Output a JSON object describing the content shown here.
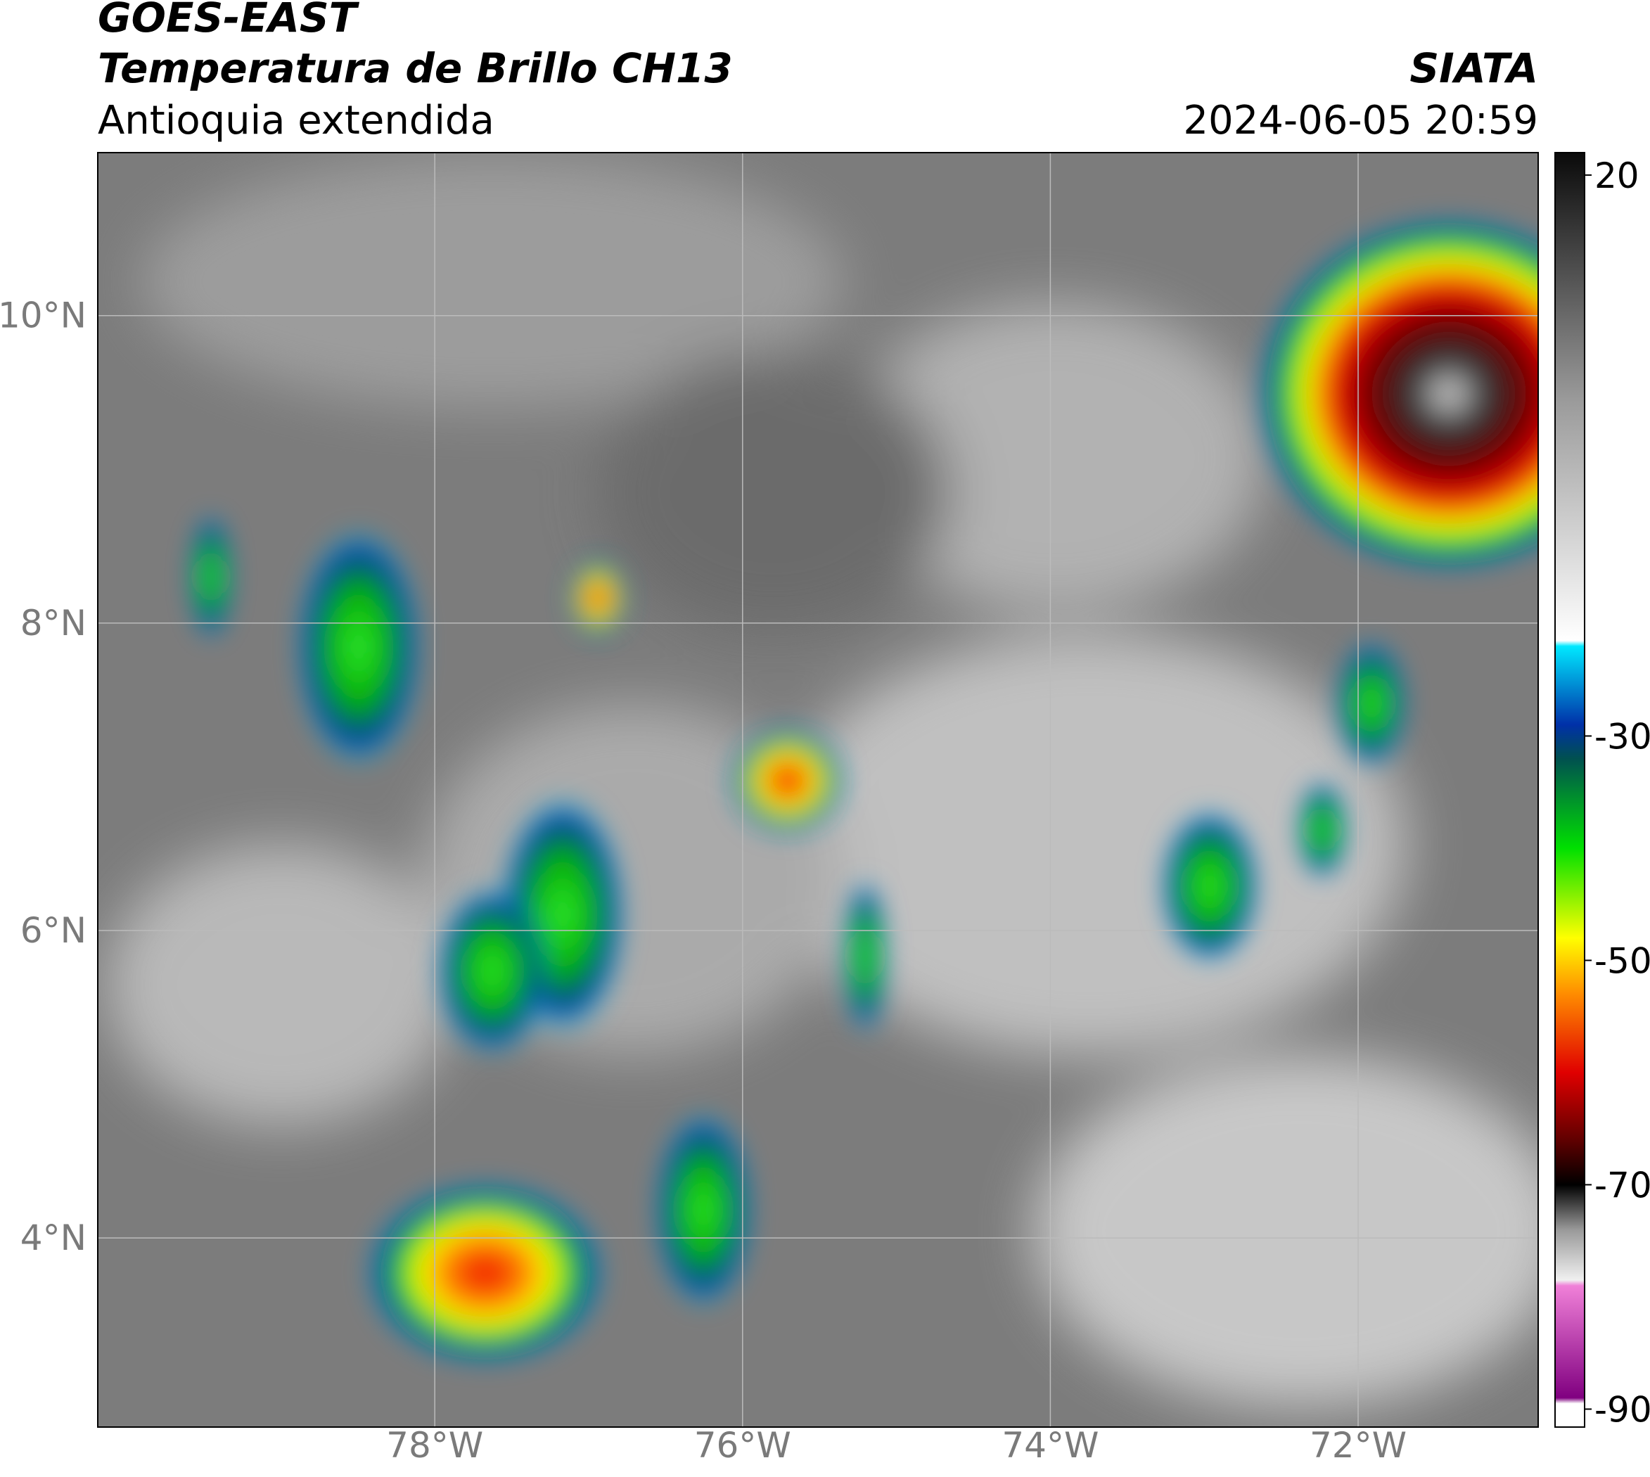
{
  "header": {
    "line1": "GOES-EAST",
    "line2": "Temperatura de Brillo CH13",
    "subtitle": "Antioquia extendida",
    "source": "SIATA",
    "datetime": "2024-06-05 20:59"
  },
  "map": {
    "lon_range": [
      -80.19,
      -70.83
    ],
    "lat_range": [
      2.77,
      11.06
    ],
    "lon_ticks": [
      {
        "value": -78,
        "label": "78°W"
      },
      {
        "value": -76,
        "label": "76°W"
      },
      {
        "value": -74,
        "label": "74°W"
      },
      {
        "value": -72,
        "label": "72°W"
      }
    ],
    "lat_ticks": [
      {
        "value": 10,
        "label": "10°N"
      },
      {
        "value": 8,
        "label": "8°N"
      },
      {
        "value": 6,
        "label": "6°N"
      },
      {
        "value": 4,
        "label": "4°N"
      }
    ],
    "grid": true,
    "grid_color": "#bbbbbb"
  },
  "colorbar": {
    "range": [
      -91.6,
      22
    ],
    "ticks": [
      20,
      -30,
      -50,
      -70,
      -90
    ],
    "colormap": [
      {
        "value": 22,
        "color": "#0a0a0a"
      },
      {
        "value": 0,
        "color": "#9a9a9a"
      },
      {
        "value": -21.5,
        "color": "#ffffff"
      },
      {
        "value": -22,
        "color": "#00e8ff"
      },
      {
        "value": -29,
        "color": "#0030a8"
      },
      {
        "value": -32,
        "color": "#005050"
      },
      {
        "value": -40,
        "color": "#00e000"
      },
      {
        "value": -48,
        "color": "#ffff00"
      },
      {
        "value": -53,
        "color": "#ff8c00"
      },
      {
        "value": -60,
        "color": "#e00000"
      },
      {
        "value": -66,
        "color": "#600000"
      },
      {
        "value": -70,
        "color": "#000000"
      },
      {
        "value": -74,
        "color": "#999999"
      },
      {
        "value": -78.5,
        "color": "#f0f0f0"
      },
      {
        "value": -79,
        "color": "#f080d8"
      },
      {
        "value": -89,
        "color": "#800080"
      },
      {
        "value": -89.5,
        "color": "#ffffff"
      },
      {
        "value": -91.6,
        "color": "#ffffff"
      }
    ]
  }
}
